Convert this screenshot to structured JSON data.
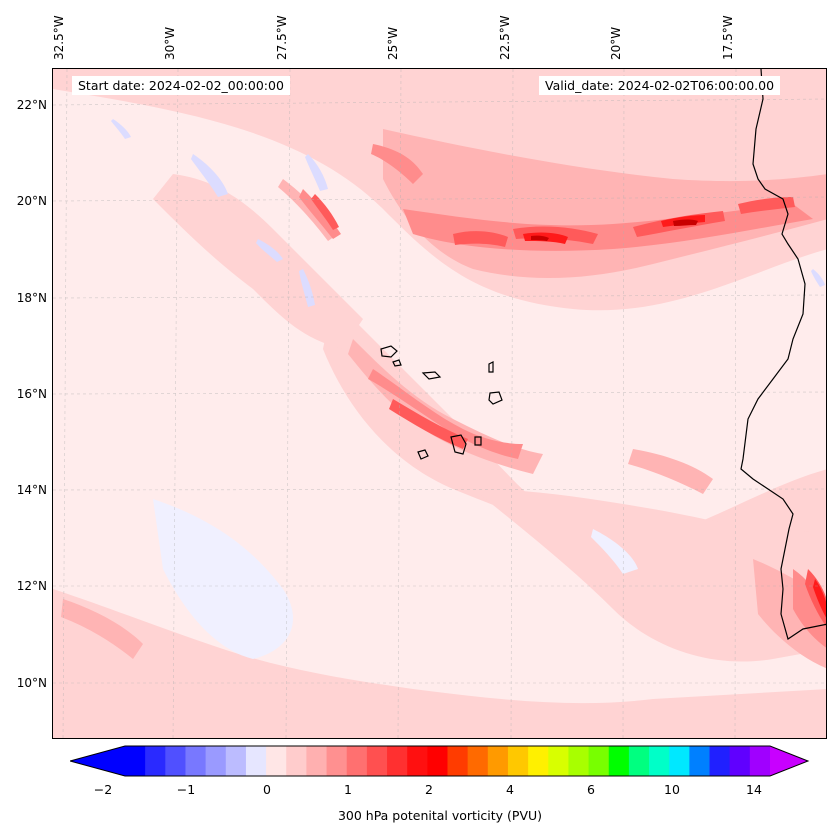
{
  "map": {
    "title_left": "Start date: 2024-02-02_00:00:00",
    "title_right": "Valid_date: 2024-02-02T06:00:00.00",
    "lon_labels": [
      "32.5°W",
      "30°W",
      "27.5°W",
      "25°W",
      "22.5°W",
      "20°W",
      "17.5°W"
    ],
    "lat_labels": [
      "22°N",
      "20°N",
      "18°N",
      "16°N",
      "14°N",
      "12°N",
      "10°N"
    ],
    "colors": {
      "very_light": "#ffecec",
      "light": "#ffd3d3",
      "medium": "#ffb4b4",
      "strong": "#ff8c8c",
      "intense": "#ff5a5a",
      "peak": "#ff1a1a",
      "max": "#c80000",
      "negative": "#dcdcff",
      "neg_strong": "#c8c8ff"
    }
  },
  "colorbar": {
    "label": "300 hPa potenital vorticity (PVU)",
    "ticks": [
      "−2",
      "−1",
      "0",
      "1",
      "2",
      "4",
      "6",
      "10",
      "14"
    ],
    "colors": [
      "#0000ff",
      "#2a2aff",
      "#5050ff",
      "#7878ff",
      "#9a9aff",
      "#bcbcff",
      "#e6e6ff",
      "#ffe6e6",
      "#ffcccc",
      "#ffb0b0",
      "#ff9090",
      "#ff7070",
      "#ff5050",
      "#ff3030",
      "#ff1010",
      "#ff0000",
      "#ff3c00",
      "#ff6a00",
      "#ff9a00",
      "#ffc800",
      "#fff000",
      "#d8ff00",
      "#a8ff00",
      "#78ff00",
      "#00ff00",
      "#00ff80",
      "#00ffc8",
      "#00e8ff",
      "#0080ff",
      "#2020ff",
      "#6000ff",
      "#a000ff"
    ],
    "extend_low": "#0000ff",
    "extend_high": "#c800ff"
  }
}
